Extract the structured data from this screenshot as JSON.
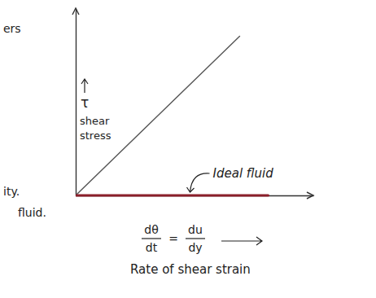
{
  "chart_data": {
    "type": "line",
    "x_label": "Rate of shear strain",
    "y_label": "shear stress",
    "y_symbol": "τ",
    "equation": {
      "lhs": [
        "dθ",
        "dt"
      ],
      "sign": "=",
      "rhs": [
        "du",
        "dy"
      ]
    },
    "xlim": [
      0,
      10
    ],
    "ylim": [
      0,
      10
    ],
    "xticks": [],
    "yticks": [],
    "tick_labels": false,
    "series": [
      {
        "x": [
          0,
          6.9
        ],
        "values": [
          0,
          8.5
        ],
        "color": "#555555"
      },
      {
        "name": "Ideal fluid",
        "x": [
          0,
          8.1
        ],
        "values": [
          0,
          0
        ],
        "color": "#8b1e2a"
      }
    ],
    "margin_notes": [
      "ers",
      "ity.",
      "fluid."
    ]
  }
}
